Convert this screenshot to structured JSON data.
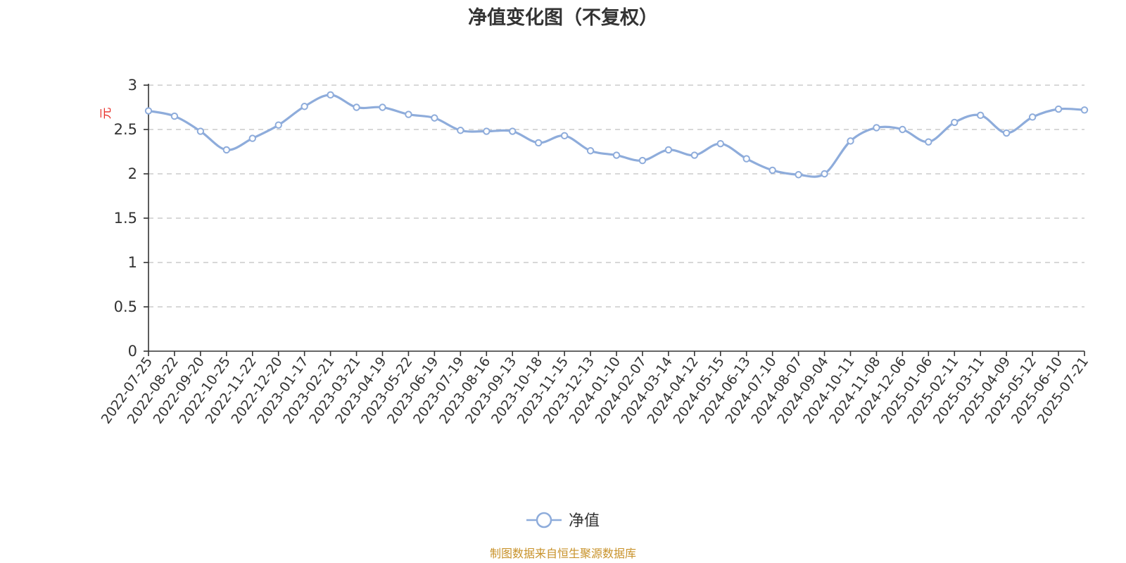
{
  "chart_data": {
    "type": "line",
    "title": "净值变化图（不复权）",
    "ylabel": "元",
    "ylim": [
      0,
      3
    ],
    "yticks": [
      "0",
      "0.5",
      "1",
      "1.5",
      "2",
      "2.5",
      "3"
    ],
    "grid": true,
    "legend_position": "bottom-center",
    "x": [
      "2022-07-25",
      "2022-08-22",
      "2022-09-20",
      "2022-10-25",
      "2022-11-22",
      "2022-12-20",
      "2023-01-17",
      "2023-02-21",
      "2023-03-21",
      "2023-04-19",
      "2023-05-22",
      "2023-06-19",
      "2023-07-19",
      "2023-08-16",
      "2023-09-13",
      "2023-10-18",
      "2023-11-15",
      "2023-12-13",
      "2024-01-10",
      "2024-02-07",
      "2024-03-14",
      "2024-04-12",
      "2024-05-15",
      "2024-06-13",
      "2024-07-10",
      "2024-08-07",
      "2024-09-04",
      "2024-10-11",
      "2024-11-08",
      "2024-12-06",
      "2025-01-06",
      "2025-02-11",
      "2025-03-11",
      "2025-04-09",
      "2025-05-12",
      "2025-06-10",
      "2025-07-21"
    ],
    "series": [
      {
        "name": "净值",
        "color": "#8eacdb",
        "values": [
          2.71,
          2.65,
          2.48,
          2.27,
          2.4,
          2.55,
          2.76,
          2.89,
          2.75,
          2.75,
          2.67,
          2.63,
          2.49,
          2.48,
          2.48,
          2.35,
          2.43,
          2.26,
          2.21,
          2.15,
          2.27,
          2.21,
          2.34,
          2.17,
          2.04,
          1.99,
          2.0,
          2.37,
          2.52,
          2.5,
          2.36,
          2.58,
          2.66,
          2.46,
          2.64,
          2.73,
          2.72
        ]
      }
    ],
    "source_note": "制图数据来自恒生聚源数据库"
  },
  "colors": {
    "line": "#8eacdb",
    "ylabel": "#e8302a",
    "source": "#c8922a",
    "grid": "#cccccc",
    "axis": "#333333"
  }
}
